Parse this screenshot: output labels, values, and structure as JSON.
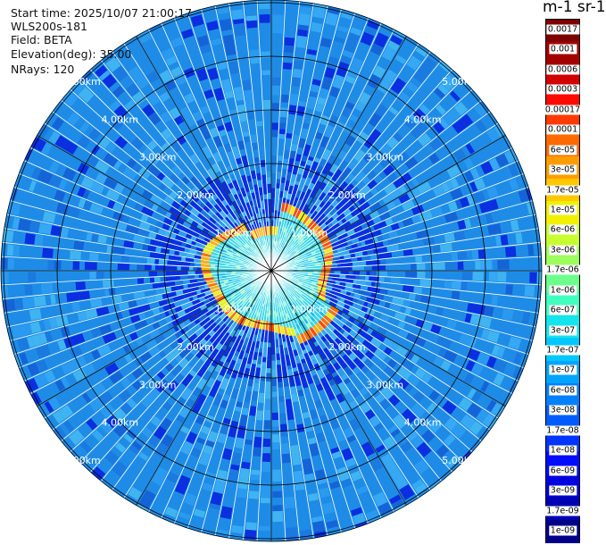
{
  "info": {
    "start_time": "Start time: 2025/10/07 21:00:17",
    "instrument": "WLS200s-181",
    "field": "Field: BETA",
    "elevation": "Elevation(deg): 35.00",
    "nrays": "NRays: 120"
  },
  "colorbar": {
    "units_title": "m-1 sr-1",
    "ticks": [
      "0.0017",
      "0.001",
      "0.0006",
      "0.0003",
      "0.00017",
      "0.0001",
      "6e-05",
      "3e-05",
      "1.7e-05",
      "1e-05",
      "6e-06",
      "3e-06",
      "1.7e-06",
      "1e-06",
      "6e-07",
      "3e-07",
      "1.7e-07",
      "1e-07",
      "6e-08",
      "3e-08",
      "1.7e-08",
      "1e-08",
      "6e-09",
      "3e-09",
      "1.7e-09",
      "1e-09"
    ],
    "colors": [
      "#7f0000",
      "#a30000",
      "#d20000",
      "#ff0a00",
      "#ff3a00",
      "#ff6a00",
      "#ff9c00",
      "#ffc800",
      "#f0f000",
      "#c8ff30",
      "#9cff5c",
      "#6cff8c",
      "#40ffbf",
      "#14e4eb",
      "#00c8ff",
      "#00a4ff",
      "#0080ff",
      "#005cff",
      "#0034ff",
      "#000cff",
      "#0000e0",
      "#0000b4",
      "#000088"
    ]
  },
  "ppi": {
    "ring_labels": [
      "1.00km",
      "2.00km",
      "3.00km",
      "4.00km",
      "5.00km"
    ],
    "rays": 120,
    "scan_colors": {
      "background": "#1e8ce6",
      "range_var": [
        "#1a7ae0",
        "#2a9af0",
        "#36a8f4",
        "#1464d8",
        "#40b4f0"
      ],
      "low_aerosol": "#0a2ee0",
      "near_field": "#38d8e8",
      "near_field_var": [
        "#70f0d8",
        "#20b8ee",
        "#9cf7c4"
      ],
      "cloud_edge": [
        "#ff4a00",
        "#ffb000",
        "#f0f000",
        "#ff7000"
      ]
    }
  }
}
